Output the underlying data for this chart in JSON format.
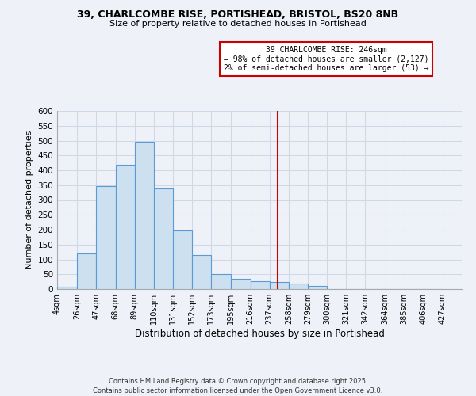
{
  "title1": "39, CHARLCOMBE RISE, PORTISHEAD, BRISTOL, BS20 8NB",
  "title2": "Size of property relative to detached houses in Portishead",
  "xlabel": "Distribution of detached houses by size in Portishead",
  "ylabel": "Number of detached properties",
  "bin_labels": [
    "4sqm",
    "26sqm",
    "47sqm",
    "68sqm",
    "89sqm",
    "110sqm",
    "131sqm",
    "152sqm",
    "173sqm",
    "195sqm",
    "216sqm",
    "237sqm",
    "258sqm",
    "279sqm",
    "300sqm",
    "321sqm",
    "342sqm",
    "364sqm",
    "385sqm",
    "406sqm",
    "427sqm"
  ],
  "bin_edges": [
    4,
    26,
    47,
    68,
    89,
    110,
    131,
    152,
    173,
    195,
    216,
    237,
    258,
    279,
    300,
    321,
    342,
    364,
    385,
    406,
    427
  ],
  "bar_heights": [
    7,
    120,
    347,
    418,
    497,
    340,
    198,
    115,
    50,
    36,
    27,
    23,
    18,
    10,
    0,
    0,
    0,
    0,
    0,
    0
  ],
  "bar_color": "#cce0f0",
  "bar_edgecolor": "#5b9bd5",
  "vline_x": 246,
  "vline_color": "#cc0000",
  "ylim": [
    0,
    600
  ],
  "yticks": [
    0,
    50,
    100,
    150,
    200,
    250,
    300,
    350,
    400,
    450,
    500,
    550,
    600
  ],
  "annotation_title": "39 CHARLCOMBE RISE: 246sqm",
  "annotation_line1": "← 98% of detached houses are smaller (2,127)",
  "annotation_line2": "2% of semi-detached houses are larger (53) →",
  "annotation_box_edgecolor": "#cc0000",
  "footnote1": "Contains HM Land Registry data © Crown copyright and database right 2025.",
  "footnote2": "Contains public sector information licensed under the Open Government Licence v3.0.",
  "background_color": "#eef2f8",
  "grid_color": "#d0d8e8",
  "figwidth": 6.0,
  "figheight": 5.0,
  "dpi": 100
}
